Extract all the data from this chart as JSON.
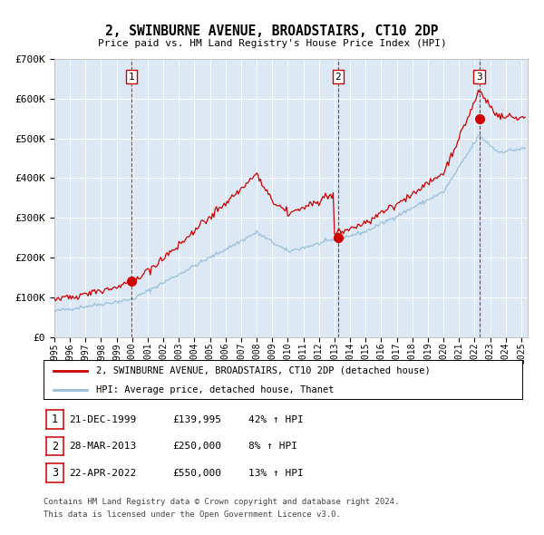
{
  "title": "2, SWINBURNE AVENUE, BROADSTAIRS, CT10 2DP",
  "subtitle": "Price paid vs. HM Land Registry's House Price Index (HPI)",
  "bg_color": "#dce9f5",
  "red_line_color": "#cc0000",
  "blue_line_color": "#99bfda",
  "purchases": [
    {
      "date_str": "1999-12-21",
      "price": 139995,
      "label": "1"
    },
    {
      "date_str": "2013-03-28",
      "price": 250000,
      "label": "2"
    },
    {
      "date_str": "2022-04-22",
      "price": 550000,
      "label": "3"
    }
  ],
  "legend_line1": "2, SWINBURNE AVENUE, BROADSTAIRS, CT10 2DP (detached house)",
  "legend_line2": "HPI: Average price, detached house, Thanet",
  "table_rows": [
    [
      "1",
      "21-DEC-1999",
      "£139,995",
      "42% ↑ HPI"
    ],
    [
      "2",
      "28-MAR-2013",
      "£250,000",
      "8% ↑ HPI"
    ],
    [
      "3",
      "22-APR-2022",
      "£550,000",
      "13% ↑ HPI"
    ]
  ],
  "footer_line1": "Contains HM Land Registry data © Crown copyright and database right 2024.",
  "footer_line2": "This data is licensed under the Open Government Licence v3.0.",
  "ylim": [
    0,
    700000
  ],
  "yticks": [
    0,
    100000,
    200000,
    300000,
    400000,
    500000,
    600000,
    700000
  ],
  "ytick_labels": [
    "£0",
    "£100K",
    "£200K",
    "£300K",
    "£400K",
    "£500K",
    "£600K",
    "£700K"
  ],
  "xstart_year": 1995,
  "xend_year": 2025
}
